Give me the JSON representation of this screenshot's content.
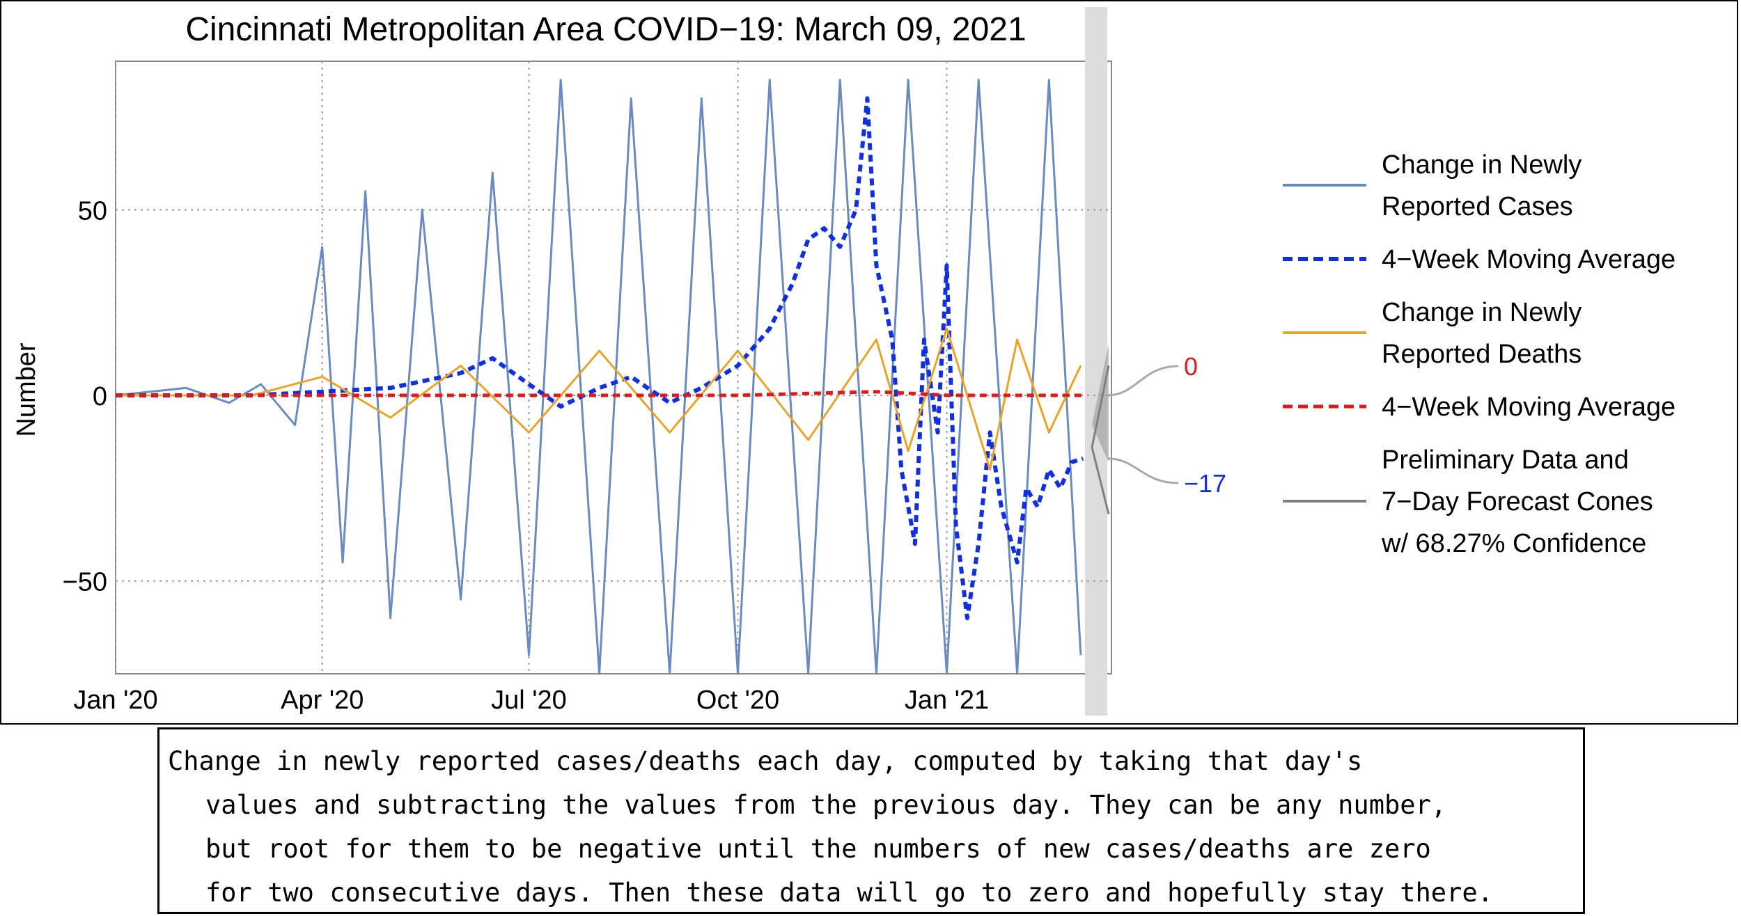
{
  "chart_data": {
    "type": "line",
    "title": "Cincinnati Metropolitan Area COVID−19: March 09, 2021",
    "ylabel": "Number",
    "xlabel": "",
    "x_range": [
      "2020-01-01",
      "2021-03-09"
    ],
    "ylim": [
      -75,
      90
    ],
    "yticks": [
      -50,
      0,
      50
    ],
    "ytick_labels": [
      "−50",
      "0",
      "50"
    ],
    "xticks": [
      "2020-01-01",
      "2020-04-01",
      "2020-07-01",
      "2020-10-01",
      "2021-01-01"
    ],
    "xtick_labels": [
      "Jan '20",
      "Apr '20",
      "Jul '20",
      "Oct '20",
      "Jan '21"
    ],
    "grid": "dotted at ticks",
    "legend_placement": "right",
    "legend": [
      {
        "label_lines": [
          "Change in Newly",
          "Reported Cases"
        ],
        "color": "#6a8bbf",
        "style": "solid"
      },
      {
        "label_lines": [
          "4−Week Moving Average"
        ],
        "color": "#1030e0",
        "style": "dashed"
      },
      {
        "label_lines": [
          "Change in Newly",
          "Reported Deaths"
        ],
        "color": "#e8a32a",
        "style": "solid"
      },
      {
        "label_lines": [
          "4−Week Moving Average"
        ],
        "color": "#e01a1a",
        "style": "dashed"
      },
      {
        "label_lines": [
          "Preliminary Data and",
          "7−Day Forecast Cones",
          "w/ 68.27% Confidence"
        ],
        "color": "#808080",
        "style": "solid"
      }
    ],
    "end_labels": [
      {
        "text": "0",
        "value": 0,
        "color": "#e01a1a"
      },
      {
        "text": "−17",
        "value": -17,
        "color": "#1030e0"
      }
    ],
    "series": [
      {
        "name": "Change in Newly Reported Cases",
        "color": "#6a8bbf",
        "style": "solid",
        "points": [
          [
            "2020-01-01",
            0
          ],
          [
            "2020-02-01",
            2
          ],
          [
            "2020-02-20",
            -2
          ],
          [
            "2020-03-05",
            3
          ],
          [
            "2020-03-20",
            -8
          ],
          [
            "2020-04-01",
            40
          ],
          [
            "2020-04-10",
            -45
          ],
          [
            "2020-04-20",
            55
          ],
          [
            "2020-05-01",
            -60
          ],
          [
            "2020-05-15",
            50
          ],
          [
            "2020-06-01",
            -55
          ],
          [
            "2020-06-15",
            60
          ],
          [
            "2020-07-01",
            -70
          ],
          [
            "2020-07-15",
            85
          ],
          [
            "2020-08-01",
            -75
          ],
          [
            "2020-08-15",
            80
          ],
          [
            "2020-09-01",
            -75
          ],
          [
            "2020-09-15",
            80
          ],
          [
            "2020-10-01",
            -75
          ],
          [
            "2020-10-15",
            85
          ],
          [
            "2020-11-01",
            -75
          ],
          [
            "2020-11-15",
            85
          ],
          [
            "2020-12-01",
            -75
          ],
          [
            "2020-12-15",
            85
          ],
          [
            "2021-01-01",
            -75
          ],
          [
            "2021-01-15",
            85
          ],
          [
            "2021-02-01",
            -75
          ],
          [
            "2021-02-15",
            85
          ],
          [
            "2021-03-01",
            -70
          ]
        ]
      },
      {
        "name": "4−Week Moving Average (Cases)",
        "color": "#1030e0",
        "style": "dashed",
        "points": [
          [
            "2020-01-01",
            0
          ],
          [
            "2020-02-01",
            0
          ],
          [
            "2020-03-01",
            0
          ],
          [
            "2020-04-01",
            1
          ],
          [
            "2020-05-01",
            2
          ],
          [
            "2020-06-01",
            6
          ],
          [
            "2020-06-15",
            10
          ],
          [
            "2020-07-01",
            3
          ],
          [
            "2020-07-15",
            -3
          ],
          [
            "2020-08-01",
            2
          ],
          [
            "2020-08-15",
            5
          ],
          [
            "2020-09-01",
            -2
          ],
          [
            "2020-09-15",
            2
          ],
          [
            "2020-10-01",
            8
          ],
          [
            "2020-10-15",
            18
          ],
          [
            "2020-10-25",
            30
          ],
          [
            "2020-11-01",
            42
          ],
          [
            "2020-11-08",
            45
          ],
          [
            "2020-11-15",
            40
          ],
          [
            "2020-11-22",
            50
          ],
          [
            "2020-11-27",
            80
          ],
          [
            "2020-12-01",
            35
          ],
          [
            "2020-12-08",
            15
          ],
          [
            "2020-12-12",
            -20
          ],
          [
            "2020-12-18",
            -40
          ],
          [
            "2020-12-22",
            15
          ],
          [
            "2020-12-28",
            -10
          ],
          [
            "2021-01-01",
            35
          ],
          [
            "2021-01-05",
            -35
          ],
          [
            "2021-01-10",
            -60
          ],
          [
            "2021-01-15",
            -40
          ],
          [
            "2021-01-20",
            -10
          ],
          [
            "2021-01-25",
            -30
          ],
          [
            "2021-02-01",
            -45
          ],
          [
            "2021-02-05",
            -25
          ],
          [
            "2021-02-10",
            -30
          ],
          [
            "2021-02-15",
            -20
          ],
          [
            "2021-02-20",
            -25
          ],
          [
            "2021-02-25",
            -18
          ],
          [
            "2021-03-02",
            -17
          ]
        ]
      },
      {
        "name": "Change in Newly Reported Deaths",
        "color": "#e8a32a",
        "style": "solid",
        "points": [
          [
            "2020-01-01",
            0
          ],
          [
            "2020-03-01",
            0
          ],
          [
            "2020-04-01",
            5
          ],
          [
            "2020-05-01",
            -6
          ],
          [
            "2020-06-01",
            8
          ],
          [
            "2020-07-01",
            -10
          ],
          [
            "2020-08-01",
            12
          ],
          [
            "2020-09-01",
            -10
          ],
          [
            "2020-10-01",
            12
          ],
          [
            "2020-11-01",
            -12
          ],
          [
            "2020-12-01",
            15
          ],
          [
            "2020-12-15",
            -15
          ],
          [
            "2021-01-01",
            18
          ],
          [
            "2021-01-20",
            -20
          ],
          [
            "2021-02-01",
            15
          ],
          [
            "2021-02-15",
            -10
          ],
          [
            "2021-03-01",
            8
          ]
        ]
      },
      {
        "name": "4−Week Moving Average (Deaths)",
        "color": "#e01a1a",
        "style": "dashed",
        "points": [
          [
            "2020-01-01",
            0
          ],
          [
            "2020-04-01",
            0
          ],
          [
            "2020-07-01",
            0
          ],
          [
            "2020-10-01",
            0
          ],
          [
            "2020-12-01",
            1
          ],
          [
            "2021-01-01",
            0
          ],
          [
            "2021-03-02",
            0
          ]
        ]
      }
    ]
  },
  "caption": {
    "lines": [
      "Change in newly reported cases/deaths each day, computed by taking that day's",
      "values and subtracting the values from the previous day. They can be any number,",
      "but root for them to be negative until the numbers of new cases/deaths are zero",
      "for two consecutive days. Then these data will go to zero and hopefully stay there."
    ]
  }
}
